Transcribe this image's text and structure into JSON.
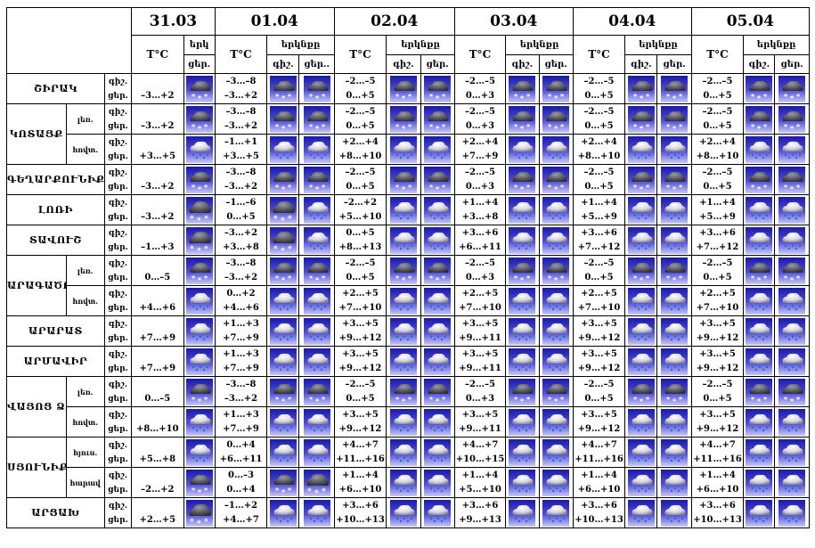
{
  "header": {
    "dates": [
      "31.03",
      "01.04",
      "02.04",
      "03.04",
      "04.04",
      "05.04"
    ],
    "temp_label": "T°C",
    "cloud_label": "երկնքը",
    "cloud_label_short": "երկ",
    "night_abbr": "գիշ.",
    "day_abbr": "ցեր.",
    "day_abbr_cut": "ցեր.."
  },
  "rows": [
    {
      "region": "ՇԻՐԱԿ",
      "zone": "",
      "d31": "–3…+2",
      "i31": "snow",
      "days": [
        [
          "–3…–8",
          "–3…+2",
          "snow",
          "snow"
        ],
        [
          "–2…–5",
          "0…+5",
          "snow",
          "snow"
        ],
        [
          "–2…–5",
          "0…+3",
          "snow",
          "snow"
        ],
        [
          "–2…–5",
          "0…+5",
          "snow",
          "snow"
        ],
        [
          "–2…–5",
          "0…+5",
          "snow",
          "snow"
        ]
      ]
    },
    {
      "region": "ԿՈՏԱՅՔ",
      "zone": "լեռ.",
      "d31": "–3…+2",
      "i31": "snow",
      "days": [
        [
          "–3…–8",
          "–3…+2",
          "snow",
          "snow"
        ],
        [
          "–2…–5",
          "0…+5",
          "snow",
          "snow"
        ],
        [
          "–2…–5",
          "0…+3",
          "snow",
          "snow"
        ],
        [
          "–2…–5",
          "0…+5",
          "snow",
          "snow"
        ],
        [
          "–2…–5",
          "0…+5",
          "snow",
          "snow"
        ]
      ]
    },
    {
      "region": "",
      "zone": "հովտ.",
      "d31": "+3…+5",
      "i31": "rain",
      "days": [
        [
          "–1…+1",
          "+3…+5",
          "rain",
          "rain"
        ],
        [
          "+2…+4",
          "+8…+10",
          "rain",
          "rain"
        ],
        [
          "+2…+4",
          "+7…+9",
          "rain",
          "rain"
        ],
        [
          "+2…+4",
          "+8…+10",
          "rain",
          "rain"
        ],
        [
          "+2…+4",
          "+8…+10",
          "rain",
          "rain"
        ]
      ]
    },
    {
      "region": "ԳԵՂԱՐՔՈՒՆԻՔ",
      "zone": "",
      "d31": "–3…+2",
      "i31": "snow",
      "days": [
        [
          "–3…–8",
          "–3…+2",
          "snow",
          "snow"
        ],
        [
          "–2…–5",
          "0…+5",
          "snow",
          "snow"
        ],
        [
          "–2…–5",
          "0…+3",
          "snow",
          "snow"
        ],
        [
          "–2…–5",
          "0…+5",
          "snow",
          "snow"
        ],
        [
          "–2…–5",
          "0…+5",
          "snow",
          "snow"
        ]
      ]
    },
    {
      "region": "ԼՈՌԻ",
      "zone": "",
      "d31": "–3…+2",
      "i31": "darksnow",
      "days": [
        [
          "–1…–6",
          "0…+5",
          "darksnow",
          "rain"
        ],
        [
          "–2…+2",
          "+5…+10",
          "rain",
          "rain"
        ],
        [
          "+1…+4",
          "+3…+8",
          "rain",
          "rain"
        ],
        [
          "+1…+4",
          "+5…+9",
          "rain",
          "rain"
        ],
        [
          "+1…+4",
          "+5…+9",
          "rain",
          "rain"
        ]
      ]
    },
    {
      "region": "ՏԱՎՈՒՇ",
      "zone": "",
      "d31": "–1…+3",
      "i31": "darksnow",
      "days": [
        [
          "–3…+2",
          "+3…+8",
          "darksnow",
          "rain"
        ],
        [
          "0…+5",
          "+8…+13",
          "rain",
          "rain"
        ],
        [
          "+3…+6",
          "+6…+11",
          "rain",
          "rain"
        ],
        [
          "+3…+6",
          "+7…+12",
          "rain",
          "rain"
        ],
        [
          "+3…+6",
          "+7…+12",
          "rain",
          "rain"
        ]
      ]
    },
    {
      "region": "ԱՐԱԳԱԾՈՏՆ",
      "zone": "լեռ.",
      "d31": "0…–5",
      "i31": "snow",
      "days": [
        [
          "–3…–8",
          "–3…+2",
          "snow",
          "snow"
        ],
        [
          "–2…–5",
          "0…+5",
          "snow",
          "snow"
        ],
        [
          "–2…–5",
          "0…+3",
          "snow",
          "snow"
        ],
        [
          "–2…–5",
          "0…+5",
          "snow",
          "snow"
        ],
        [
          "–2…–5",
          "0…+5",
          "snow",
          "snow"
        ]
      ]
    },
    {
      "region": "",
      "zone": "հովտ.",
      "d31": "+4…+6",
      "i31": "rain",
      "days": [
        [
          "0…+2",
          "+4…+6",
          "rain",
          "rain"
        ],
        [
          "+2…+5",
          "+7…+10",
          "rain",
          "rain"
        ],
        [
          "+2…+5",
          "+7…+10",
          "rain",
          "rain"
        ],
        [
          "+2…+5",
          "+7…+10",
          "rain",
          "rain"
        ],
        [
          "+2…+5",
          "+7…+10",
          "rain",
          "rain"
        ]
      ]
    },
    {
      "region": "ԱՐԱՐԱՏ",
      "zone": "",
      "d31": "+7…+9",
      "i31": "rain",
      "days": [
        [
          "+1…+3",
          "+7…+9",
          "rain",
          "rain"
        ],
        [
          "+3…+5",
          "+9…+12",
          "rain",
          "rain"
        ],
        [
          "+3…+5",
          "+9…+11",
          "rain",
          "rain"
        ],
        [
          "+3…+5",
          "+9…+12",
          "rain",
          "rain"
        ],
        [
          "+3…+5",
          "+9…+12",
          "rain",
          "rain"
        ]
      ]
    },
    {
      "region": "ԱՐՄԱՎԻՐ",
      "zone": "",
      "d31": "+7…+9",
      "i31": "rain",
      "days": [
        [
          "+1…+3",
          "+7…+9",
          "rain",
          "rain"
        ],
        [
          "+3…+5",
          "+9…+12",
          "rain",
          "rain"
        ],
        [
          "+3…+5",
          "+9…+11",
          "rain",
          "rain"
        ],
        [
          "+3…+5",
          "+9…+12",
          "rain",
          "rain"
        ],
        [
          "+3…+5",
          "+9…+12",
          "rain",
          "rain"
        ]
      ]
    },
    {
      "region": "ՎԱՅՈՑ ՁՈՌ",
      "zone": "լեռ.",
      "d31": "0…–5",
      "i31": "snow",
      "days": [
        [
          "–3…–8",
          "–3…+2",
          "snow",
          "snow"
        ],
        [
          "–2…–5",
          "0…+5",
          "snow",
          "snow"
        ],
        [
          "–2…–5",
          "0…+3",
          "snow",
          "snow"
        ],
        [
          "–2…–5",
          "0…+5",
          "snow",
          "snow"
        ],
        [
          "–2…–5",
          "0…+5",
          "snow",
          "snow"
        ]
      ]
    },
    {
      "region": "",
      "zone": "հովտ.",
      "d31": "+8…+10",
      "i31": "rain",
      "days": [
        [
          "+1…+3",
          "+7…+9",
          "rain",
          "rain"
        ],
        [
          "+3…+5",
          "+9…+12",
          "rain",
          "rain"
        ],
        [
          "+3…+5",
          "+9…+11",
          "rain",
          "rain"
        ],
        [
          "+3…+5",
          "+9…+12",
          "rain",
          "rain"
        ],
        [
          "+3…+5",
          "+9…+12",
          "rain",
          "rain"
        ]
      ]
    },
    {
      "region": "ՍՅՈՒՆԻՔ",
      "zone": "հյուս.",
      "d31": "+5…+8",
      "i31": "rain",
      "days": [
        [
          "0…+4",
          "+6…+11",
          "rain",
          "rain"
        ],
        [
          "+4…+7",
          "+11…+16",
          "rain",
          "rain"
        ],
        [
          "+4…+7",
          "+10…+15",
          "rain",
          "rain"
        ],
        [
          "+4…+7",
          "+11…+16",
          "rain",
          "rain"
        ],
        [
          "+4…+7",
          "+11…+16",
          "rain",
          "rain"
        ]
      ]
    },
    {
      "region": "",
      "zone": "հարավ",
      "d31": "–2…+2",
      "i31": "snow",
      "days": [
        [
          "0…–3",
          "0…+4",
          "snow",
          "darksnow"
        ],
        [
          "+1…+4",
          "+6…+10",
          "rain",
          "rain"
        ],
        [
          "+1…+4",
          "+5…+10",
          "rain",
          "rain"
        ],
        [
          "+1…+4",
          "+6…+10",
          "rain",
          "rain"
        ],
        [
          "+1…+4",
          "+6…+10",
          "rain",
          "rain"
        ]
      ]
    },
    {
      "region": "ԱՐՑԱԽ",
      "zone": "",
      "d31": "+2…+5",
      "i31": "darksnow",
      "days": [
        [
          "–1…+2",
          "+4…+7",
          "rain",
          "rain"
        ],
        [
          "+3…+6",
          "+10…+13",
          "rain",
          "rain"
        ],
        [
          "+3…+6",
          "+9…+13",
          "rain",
          "rain"
        ],
        [
          "+3…+6",
          "+10…+13",
          "rain",
          "rain"
        ],
        [
          "+3…+6",
          "+10…+13",
          "rain",
          "rain"
        ]
      ]
    }
  ]
}
